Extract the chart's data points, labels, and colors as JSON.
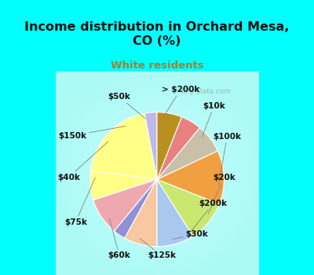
{
  "title": "Income distribution in Orchard Mesa,\nCO (%)",
  "subtitle": "White residents",
  "title_color": "#111111",
  "subtitle_color": "#b87820",
  "bg_cyan": "#00ffff",
  "labels": [
    "> $200k",
    "$10k",
    "$100k",
    "$20k",
    "$200k",
    "$30k",
    "$125k",
    "$60k",
    "$75k",
    "$40k",
    "$150k",
    "$50k"
  ],
  "values": [
    3,
    20,
    7,
    9,
    3,
    8,
    9,
    10,
    13,
    7,
    5,
    6
  ],
  "colors": [
    "#c0b8e8",
    "#ffff88",
    "#ffff88",
    "#f0a8b0",
    "#9090d8",
    "#f8c8a0",
    "#a8c8f0",
    "#c8e870",
    "#f0a040",
    "#c8c0a8",
    "#e88080",
    "#b89020"
  ],
  "wedge_edge_color": "#ffffff",
  "label_fontsize": 7.5,
  "label_color": "#111111",
  "watermark": "City-Data.com"
}
